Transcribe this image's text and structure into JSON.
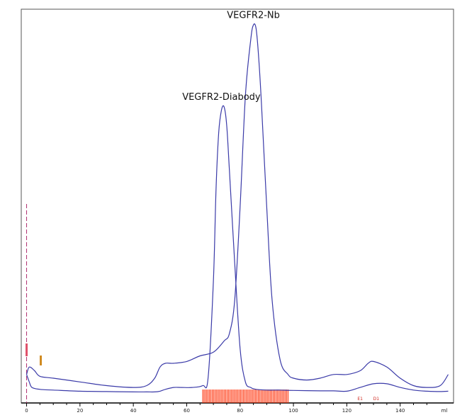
{
  "chart_data": {
    "type": "line",
    "title": "",
    "xlabel": "",
    "ylabel": "",
    "x_unit": "ml",
    "xlim": [
      -2,
      160
    ],
    "ylim": [
      0,
      100
    ],
    "x_ticks": [
      0,
      20,
      40,
      60,
      80,
      100,
      120,
      140
    ],
    "grid": false,
    "legend": "none",
    "series": [
      {
        "color": "#3a3aa8",
        "x": [
          0,
          1,
          2,
          5,
          10,
          20,
          30,
          40,
          45,
          48,
          50,
          52,
          55,
          58,
          62,
          66,
          68,
          70,
          71,
          72,
          73,
          74,
          75,
          76,
          78,
          80,
          82,
          84,
          86,
          90,
          95,
          100,
          110,
          115,
          120,
          125,
          130,
          135,
          140,
          145,
          150,
          155,
          158
        ],
        "y": [
          5,
          3,
          1.5,
          1,
          0.8,
          0.5,
          0.4,
          0.3,
          0.3,
          0.3,
          0.5,
          1,
          1.5,
          1.5,
          1.5,
          2,
          4,
          30,
          55,
          70,
          76,
          77,
          72,
          60,
          35,
          12,
          3,
          1.5,
          1,
          0.8,
          0.8,
          0.7,
          0.6,
          0.6,
          0.5,
          1.5,
          2.5,
          2.5,
          1.5,
          0.8,
          0.5,
          0.4,
          0.5
        ]
      },
      {
        "color": "#3a3aa8",
        "x": [
          0,
          1,
          3,
          5,
          10,
          20,
          30,
          40,
          45,
          48,
          50,
          52,
          55,
          60,
          65,
          70,
          74,
          76,
          78,
          80,
          82,
          84,
          85,
          86,
          87,
          88,
          90,
          92,
          95,
          98,
          100,
          105,
          110,
          115,
          120,
          125,
          128,
          130,
          135,
          140,
          145,
          150,
          155,
          158
        ],
        "y": [
          5,
          7,
          6,
          4.5,
          4,
          3,
          2,
          1.5,
          2,
          4,
          7,
          8,
          8,
          8.5,
          10,
          11,
          14,
          16,
          25,
          50,
          80,
          95,
          99,
          98,
          90,
          78,
          50,
          25,
          9,
          5,
          4,
          3.5,
          4,
          5,
          5,
          6,
          8,
          8.5,
          7,
          4,
          2,
          1.5,
          2,
          5
        ]
      }
    ],
    "annotations": [
      {
        "text": "VEGFR2-Nb",
        "x": 85,
        "y": 99
      },
      {
        "text": "VEGFR2-Diabody",
        "x": 73,
        "y": 77
      }
    ],
    "fraction_markers": {
      "color": "#ff2a00",
      "x_start": 66,
      "x_end": 98,
      "count": 64
    },
    "event_marks": [
      {
        "text": "E1",
        "x": 125
      },
      {
        "text": "D1",
        "x": 131
      }
    ],
    "injection_x": 0
  }
}
